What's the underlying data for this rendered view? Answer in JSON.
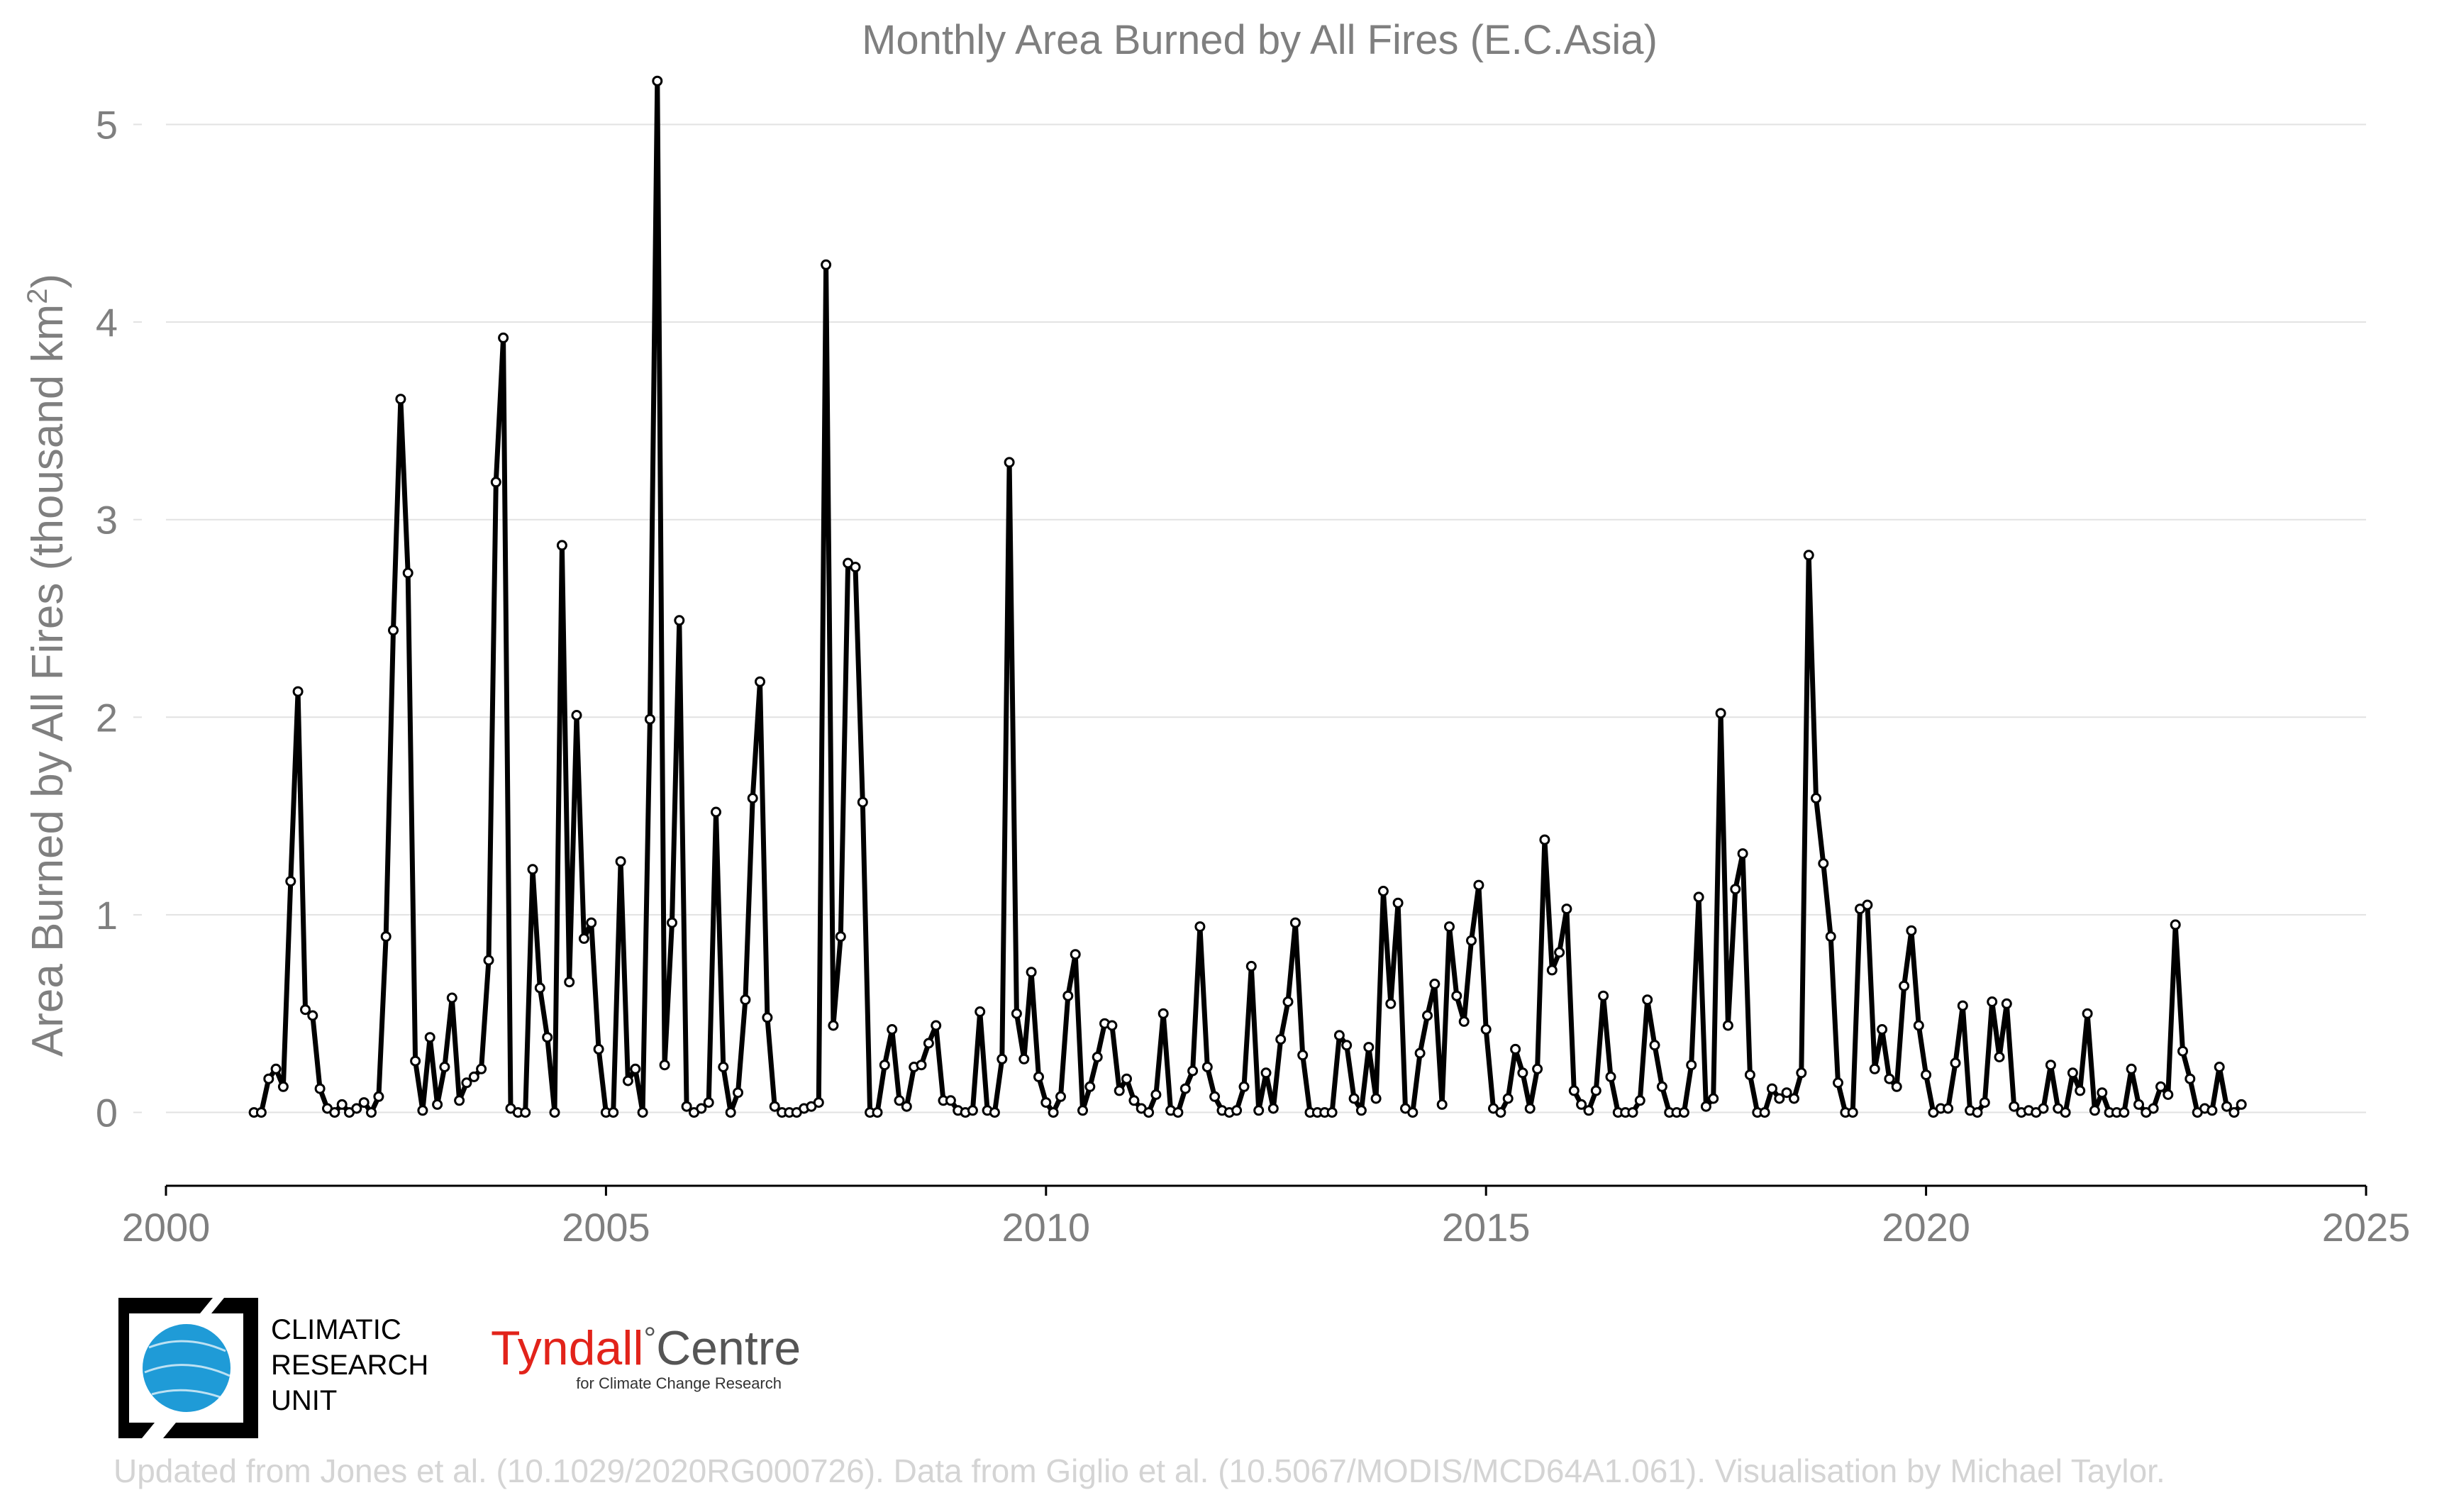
{
  "chart_data": {
    "type": "line",
    "title": "Monthly Area Burned by All Fires (E.C.Asia)",
    "xlabel": "",
    "ylabel": "Area Burned by All Fires (thousand km²)",
    "ylabel_parts": {
      "main": "Area Burned by All Fires (thousand km",
      "sup": "2",
      "close": ")"
    },
    "xlim": [
      2000,
      2025
    ],
    "ylim": [
      -0.4,
      5.4
    ],
    "x_ticks": [
      2000,
      2005,
      2010,
      2015,
      2020,
      2025
    ],
    "x_tick_labels": [
      "2000",
      "2005",
      "2010",
      "2015",
      "2020",
      "2025"
    ],
    "y_ticks": [
      0,
      1,
      2,
      3,
      4,
      5
    ],
    "y_tick_labels": [
      "0",
      "1",
      "2",
      "3",
      "4",
      "5"
    ],
    "grid": "horizontal",
    "series": [
      {
        "start": "2001-01",
        "frequency": "monthly",
        "values": [
          0.0,
          0.0,
          0.17,
          0.22,
          0.13,
          1.17,
          2.13,
          0.52,
          0.49,
          0.12,
          0.02,
          0.0,
          0.04,
          0.0,
          0.02,
          0.05,
          0.0,
          0.08,
          0.89,
          2.44,
          3.61,
          2.73,
          0.26,
          0.01,
          0.38,
          0.04,
          0.23,
          0.58,
          0.06,
          0.15,
          0.18,
          0.22,
          0.77,
          3.19,
          3.92,
          0.02,
          0.0,
          0.0,
          1.23,
          0.63,
          0.38,
          0.0,
          2.87,
          0.66,
          2.01,
          0.88,
          0.96,
          0.32,
          0.0,
          0.0,
          1.27,
          0.16,
          0.22,
          0.0,
          1.99,
          5.22,
          0.24,
          0.96,
          2.49,
          0.03,
          0.0,
          0.02,
          0.05,
          1.52,
          0.23,
          0.0,
          0.1,
          0.57,
          1.59,
          2.18,
          0.48,
          0.03,
          0.0,
          0.0,
          0.0,
          0.02,
          0.03,
          0.05,
          4.29,
          0.44,
          0.89,
          2.78,
          2.76,
          1.57,
          0.0,
          0.0,
          0.24,
          0.42,
          0.06,
          0.03,
          0.23,
          0.24,
          0.35,
          0.44,
          0.06,
          0.06,
          0.01,
          0.0,
          0.01,
          0.51,
          0.01,
          0.0,
          0.27,
          3.29,
          0.5,
          0.27,
          0.71,
          0.18,
          0.05,
          0.0,
          0.08,
          0.59,
          0.8,
          0.01,
          0.13,
          0.28,
          0.45,
          0.44,
          0.11,
          0.17,
          0.06,
          0.02,
          0.0,
          0.09,
          0.5,
          0.01,
          0.0,
          0.12,
          0.21,
          0.94,
          0.23,
          0.08,
          0.01,
          0.0,
          0.01,
          0.13,
          0.74,
          0.01,
          0.2,
          0.02,
          0.37,
          0.56,
          0.96,
          0.29,
          0.0,
          0.0,
          0.0,
          0.0,
          0.39,
          0.34,
          0.07,
          0.01,
          0.33,
          0.07,
          1.12,
          0.55,
          1.06,
          0.02,
          0.0,
          0.3,
          0.49,
          0.65,
          0.04,
          0.94,
          0.59,
          0.46,
          0.87,
          1.15,
          0.42,
          0.02,
          0.0,
          0.07,
          0.32,
          0.2,
          0.02,
          0.22,
          1.38,
          0.72,
          0.81,
          1.03,
          0.11,
          0.04,
          0.01,
          0.11,
          0.59,
          0.18,
          0.0,
          0.0,
          0.0,
          0.06,
          0.57,
          0.34,
          0.13,
          0.0,
          0.0,
          0.0,
          0.24,
          1.09,
          0.03,
          0.07,
          2.02,
          0.44,
          1.13,
          1.31,
          0.19,
          0.0,
          0.0,
          0.12,
          0.07,
          0.1,
          0.07,
          0.2,
          2.82,
          1.59,
          1.26,
          0.89,
          0.15,
          0.0,
          0.0,
          1.03,
          1.05,
          0.22,
          0.42,
          0.17,
          0.13,
          0.64,
          0.92,
          0.44,
          0.19,
          0.0,
          0.02,
          0.02,
          0.25,
          0.54,
          0.01,
          0.0,
          0.05,
          0.56,
          0.28,
          0.55,
          0.03,
          0.0,
          0.01,
          0.0,
          0.02,
          0.24,
          0.02,
          0.0,
          0.2,
          0.11,
          0.5,
          0.01,
          0.1,
          0.0,
          0.0,
          0.0,
          0.22,
          0.04,
          0.0,
          0.02,
          0.13,
          0.09,
          0.95,
          0.31,
          0.17,
          0.0,
          0.02,
          0.01,
          0.23,
          0.03,
          0.0,
          0.04
        ]
      }
    ]
  },
  "logos": {
    "cru_lines": [
      "CLIMATIC",
      "RESEARCH",
      "UNIT"
    ],
    "tyndall_name": "Tyndall",
    "tyndall_degree": "°",
    "tyndall_suffix": "Centre",
    "tyndall_tagline": "for Climate Change Research"
  },
  "credit": "Updated from Jones et al. (10.1029/2020RG000726). Data from Giglio et al. (10.5067/MODIS/MCD64A1.061). Visualisation by Michael Taylor.",
  "colors": {
    "line": "#000000",
    "grid": "#e2e2e2",
    "text": "#7f7f7f",
    "credit": "#d4d4d4",
    "tyndall_red": "#e2231a",
    "tyndall_grey": "#555555",
    "cru_blue": "#1f9bd7"
  }
}
